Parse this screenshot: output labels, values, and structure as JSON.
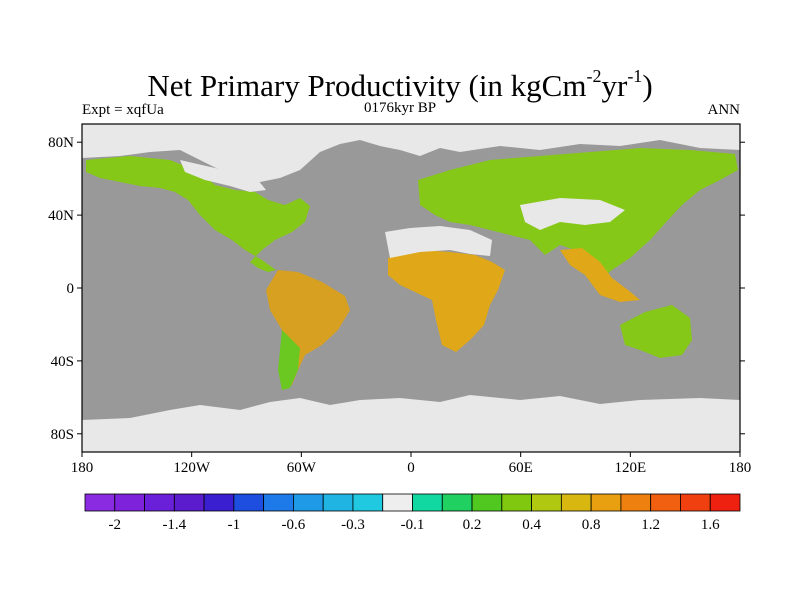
{
  "title": {
    "main": "Net Primary Productivity (in kgCm",
    "sup1": "-2",
    "mid": "yr",
    "sup2": "-1",
    "end": ")"
  },
  "subtitle": {
    "left": "Expt = xqfUa",
    "center": "0176kyr BP",
    "right": "ANN"
  },
  "map": {
    "lon_range": [
      -180,
      180
    ],
    "lat_range": [
      -90,
      90
    ],
    "ocean_color": "#999999",
    "ice_color": "#e8e8e8",
    "y_ticks": [
      {
        "lat": 80,
        "label": "80N"
      },
      {
        "lat": 40,
        "label": "40N"
      },
      {
        "lat": 0,
        "label": "0"
      },
      {
        "lat": -40,
        "label": "40S"
      },
      {
        "lat": -80,
        "label": "80S"
      }
    ],
    "x_ticks": [
      {
        "lon": -180,
        "label": "180"
      },
      {
        "lon": -120,
        "label": "120W"
      },
      {
        "lon": -60,
        "label": "60W"
      },
      {
        "lon": 0,
        "label": "0"
      },
      {
        "lon": 60,
        "label": "60E"
      },
      {
        "lon": 120,
        "label": "120E"
      },
      {
        "lon": 180,
        "label": "180"
      }
    ]
  },
  "colorbar": {
    "colors": [
      "#8a2be2",
      "#7e22dc",
      "#6a1fd8",
      "#5a1ccc",
      "#3a1fd0",
      "#1d4ee0",
      "#1e7ae8",
      "#1f9ae6",
      "#20b4e2",
      "#20c8e0",
      "#eeeeee",
      "#10d8a0",
      "#20d060",
      "#50c820",
      "#80c810",
      "#b0c810",
      "#d8b810",
      "#e8a010",
      "#ee8010",
      "#f06010",
      "#f04010",
      "#ee2010"
    ],
    "labels": [
      {
        "boundary": 1,
        "text": "-2"
      },
      {
        "boundary": 3,
        "text": "-1.4"
      },
      {
        "boundary": 5,
        "text": "-1"
      },
      {
        "boundary": 7,
        "text": "-0.6"
      },
      {
        "boundary": 9,
        "text": "-0.3"
      },
      {
        "boundary": 11,
        "text": "-0.1"
      },
      {
        "boundary": 13,
        "text": "0.2"
      },
      {
        "boundary": 15,
        "text": "0.4"
      },
      {
        "boundary": 17,
        "text": "0.8"
      },
      {
        "boundary": 19,
        "text": "1.2"
      },
      {
        "boundary": 21,
        "text": "1.6"
      }
    ]
  }
}
